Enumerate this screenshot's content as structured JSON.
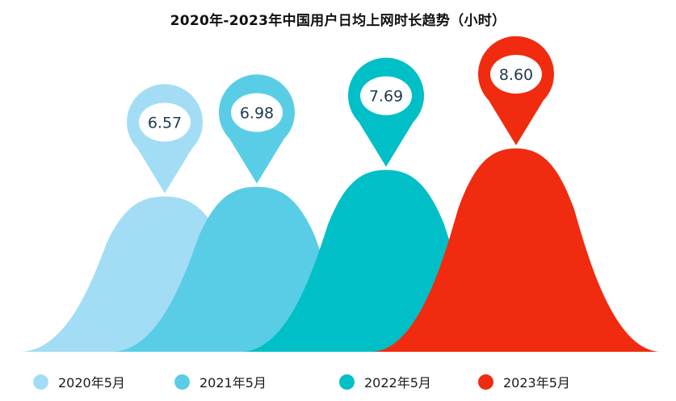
{
  "chart_data": {
    "type": "area",
    "title": "2020年-2023年中国用户日均上网时长趋势（小时）",
    "xlabel": "",
    "ylabel": "",
    "unit": "小时",
    "ylim": [
      0,
      9.2
    ],
    "legend_position": "bottom",
    "series": [
      {
        "name": "2020年5月",
        "value": 6.57,
        "label": "6.57",
        "color": "#a3ddf5"
      },
      {
        "name": "2021年5月",
        "value": 6.98,
        "label": "6.98",
        "color": "#5acde6"
      },
      {
        "name": "2022年5月",
        "value": 7.69,
        "label": "7.69",
        "color": "#00bfc6"
      },
      {
        "name": "2023年5月",
        "value": 8.6,
        "label": "8.60",
        "color": "#f02b0f"
      }
    ]
  }
}
